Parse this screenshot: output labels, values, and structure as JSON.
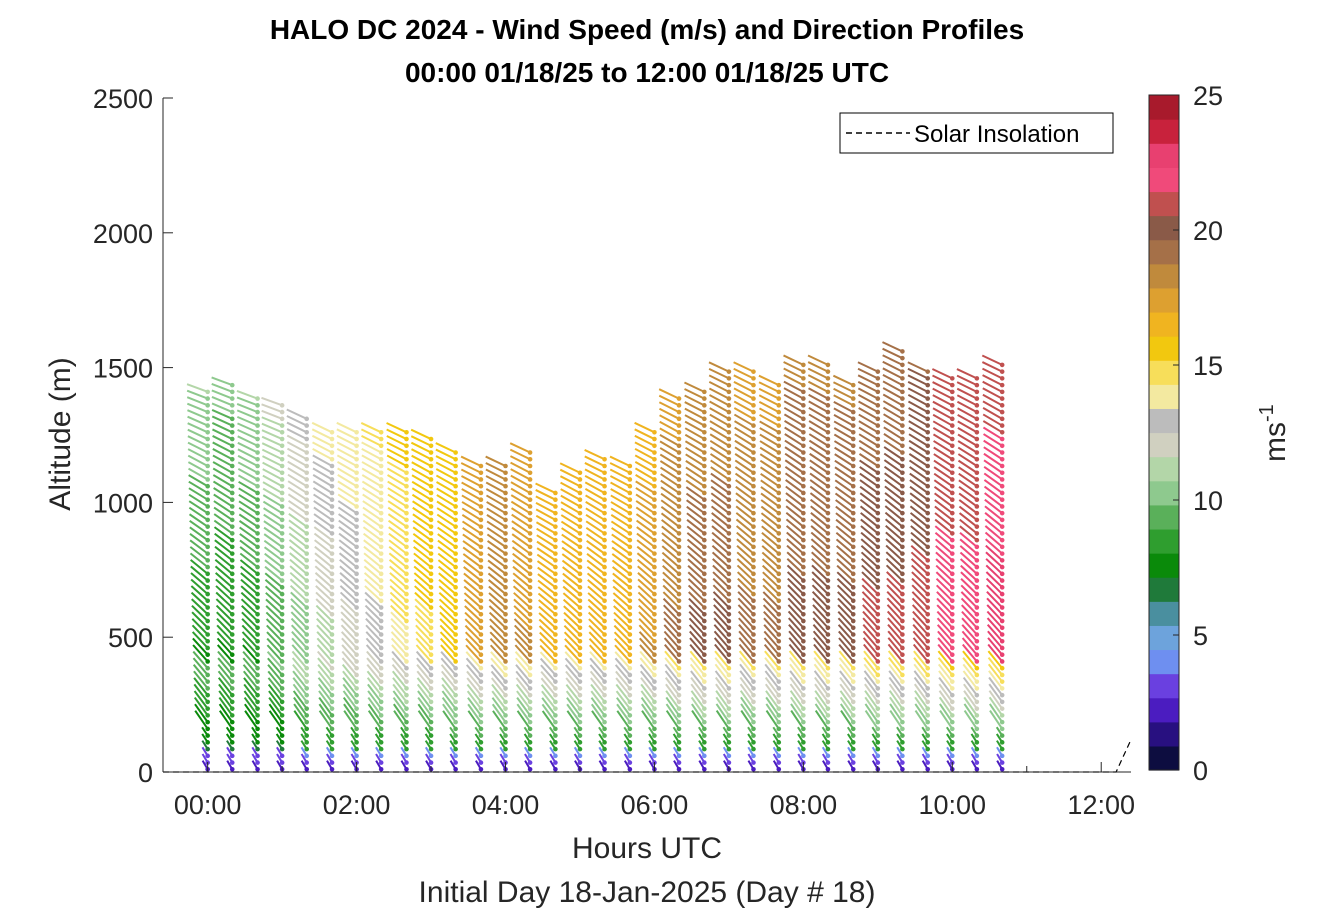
{
  "chart_data": {
    "type": "scatter",
    "title": "HALO DC 2024 - Wind Speed (m/s) and Direction Profiles",
    "subtitle": "00:00 01/18/25 to 12:00 01/18/25  UTC",
    "xlabel": "Hours UTC",
    "xlabel2": "Initial Day 18-Jan-2025 (Day # 18)",
    "ylabel": "Altitude (m)",
    "xlim": [
      -0.6,
      12.4
    ],
    "ylim": [
      0,
      2500
    ],
    "x_ticks": [
      0,
      2,
      4,
      6,
      8,
      10,
      12
    ],
    "x_tick_labels": [
      "00:00",
      "02:00",
      "04:00",
      "06:00",
      "08:00",
      "10:00",
      "12:00"
    ],
    "y_ticks": [
      0,
      500,
      1000,
      1500,
      2000,
      2500
    ],
    "y_tick_labels": [
      "0",
      "500",
      "1000",
      "1500",
      "2000",
      "2500"
    ],
    "grid": false,
    "legend": {
      "placement": "top-right",
      "entries": [
        "Solar Insolation"
      ]
    },
    "colorbar": {
      "label": "ms",
      "label_superscript": "-1",
      "range": [
        0,
        25
      ],
      "ticks": [
        0,
        5,
        10,
        15,
        20,
        25
      ],
      "tick_labels": [
        "0",
        "5",
        "10",
        "15",
        "20",
        "25"
      ]
    },
    "profiles": [
      {
        "time": 0.0,
        "top": 1420,
        "base_dir": 330,
        "top_dir": 290,
        "low_speed": 4,
        "mid_speed": 8,
        "top_speed": 12
      },
      {
        "time": 0.33,
        "top": 1450,
        "base_dir": 330,
        "top_dir": 290,
        "low_speed": 4,
        "mid_speed": 8,
        "top_speed": 11
      },
      {
        "time": 0.67,
        "top": 1400,
        "base_dir": 330,
        "top_dir": 290,
        "low_speed": 4,
        "mid_speed": 8,
        "top_speed": 12
      },
      {
        "time": 1.0,
        "top": 1360,
        "base_dir": 330,
        "top_dir": 290,
        "low_speed": 4,
        "mid_speed": 9,
        "top_speed": 13
      },
      {
        "time": 1.33,
        "top": 1310,
        "base_dir": 330,
        "top_dir": 295,
        "low_speed": 5,
        "mid_speed": 10,
        "top_speed": 14
      },
      {
        "time": 1.67,
        "top": 1280,
        "base_dir": 330,
        "top_dir": 295,
        "low_speed": 5,
        "mid_speed": 11,
        "top_speed": 15
      },
      {
        "time": 2.0,
        "top": 1280,
        "base_dir": 330,
        "top_dir": 295,
        "low_speed": 5,
        "mid_speed": 12,
        "top_speed": 15
      },
      {
        "time": 2.33,
        "top": 1270,
        "base_dir": 330,
        "top_dir": 295,
        "low_speed": 5,
        "mid_speed": 13,
        "top_speed": 15
      },
      {
        "time": 2.67,
        "top": 1260,
        "base_dir": 330,
        "top_dir": 295,
        "low_speed": 5,
        "mid_speed": 14,
        "top_speed": 16
      },
      {
        "time": 3.0,
        "top": 1240,
        "base_dir": 330,
        "top_dir": 295,
        "low_speed": 5,
        "mid_speed": 15,
        "top_speed": 16
      },
      {
        "time": 3.33,
        "top": 1200,
        "base_dir": 330,
        "top_dir": 295,
        "low_speed": 5,
        "mid_speed": 16,
        "top_speed": 16
      },
      {
        "time": 3.67,
        "top": 1150,
        "base_dir": 330,
        "top_dir": 295,
        "low_speed": 5,
        "mid_speed": 17,
        "top_speed": 17
      },
      {
        "time": 4.0,
        "top": 1150,
        "base_dir": 330,
        "top_dir": 295,
        "low_speed": 5,
        "mid_speed": 18,
        "top_speed": 18
      },
      {
        "time": 4.33,
        "top": 1190,
        "base_dir": 330,
        "top_dir": 295,
        "low_speed": 5,
        "mid_speed": 18,
        "top_speed": 17
      },
      {
        "time": 4.67,
        "top": 1050,
        "base_dir": 330,
        "top_dir": 295,
        "low_speed": 5,
        "mid_speed": 17,
        "top_speed": 16
      },
      {
        "time": 5.0,
        "top": 1130,
        "base_dir": 330,
        "top_dir": 295,
        "low_speed": 5,
        "mid_speed": 17,
        "top_speed": 16
      },
      {
        "time": 5.33,
        "top": 1160,
        "base_dir": 330,
        "top_dir": 295,
        "low_speed": 5,
        "mid_speed": 17,
        "top_speed": 16
      },
      {
        "time": 5.67,
        "top": 1150,
        "base_dir": 330,
        "top_dir": 295,
        "low_speed": 5,
        "mid_speed": 17,
        "top_speed": 16
      },
      {
        "time": 6.0,
        "top": 1280,
        "base_dir": 330,
        "top_dir": 295,
        "low_speed": 5,
        "mid_speed": 18,
        "top_speed": 16
      },
      {
        "time": 6.33,
        "top": 1400,
        "base_dir": 330,
        "top_dir": 295,
        "low_speed": 5,
        "mid_speed": 19,
        "top_speed": 17
      },
      {
        "time": 6.67,
        "top": 1420,
        "base_dir": 330,
        "top_dir": 295,
        "low_speed": 5,
        "mid_speed": 20,
        "top_speed": 17
      },
      {
        "time": 7.0,
        "top": 1490,
        "base_dir": 330,
        "top_dir": 295,
        "low_speed": 5,
        "mid_speed": 20,
        "top_speed": 17
      },
      {
        "time": 7.33,
        "top": 1500,
        "base_dir": 330,
        "top_dir": 295,
        "low_speed": 5,
        "mid_speed": 19,
        "top_speed": 17
      },
      {
        "time": 7.67,
        "top": 1450,
        "base_dir": 330,
        "top_dir": 295,
        "low_speed": 5,
        "mid_speed": 19,
        "top_speed": 17
      },
      {
        "time": 8.0,
        "top": 1530,
        "base_dir": 330,
        "top_dir": 295,
        "low_speed": 5,
        "mid_speed": 20,
        "top_speed": 18
      },
      {
        "time": 8.33,
        "top": 1520,
        "base_dir": 330,
        "top_dir": 295,
        "low_speed": 5,
        "mid_speed": 20,
        "top_speed": 18
      },
      {
        "time": 8.67,
        "top": 1450,
        "base_dir": 330,
        "top_dir": 295,
        "low_speed": 5,
        "mid_speed": 20,
        "top_speed": 18
      },
      {
        "time": 9.0,
        "top": 1500,
        "base_dir": 330,
        "top_dir": 295,
        "low_speed": 5,
        "mid_speed": 21,
        "top_speed": 18
      },
      {
        "time": 9.33,
        "top": 1560,
        "base_dir": 330,
        "top_dir": 295,
        "low_speed": 5,
        "mid_speed": 21,
        "top_speed": 18
      },
      {
        "time": 9.67,
        "top": 1500,
        "base_dir": 330,
        "top_dir": 295,
        "low_speed": 5,
        "mid_speed": 21,
        "top_speed": 19
      },
      {
        "time": 10.0,
        "top": 1470,
        "base_dir": 330,
        "top_dir": 295,
        "low_speed": 5,
        "mid_speed": 22,
        "top_speed": 20
      },
      {
        "time": 10.33,
        "top": 1460,
        "base_dir": 330,
        "top_dir": 295,
        "low_speed": 5,
        "mid_speed": 22,
        "top_speed": 20
      },
      {
        "time": 10.67,
        "top": 1520,
        "base_dir": 330,
        "top_dir": 295,
        "low_speed": 5,
        "mid_speed": 23,
        "top_speed": 20
      }
    ],
    "solar_insolation": {
      "x": [
        -0.6,
        12.2,
        12.4
      ],
      "y": [
        0,
        0,
        120
      ]
    }
  },
  "colors": {
    "axis": "#262626",
    "legend_border": "#000000",
    "colormap": [
      "#0d0d40",
      "#281080",
      "#4b1cc0",
      "#6a40e0",
      "#6e8ff0",
      "#6da3dc",
      "#4a8f9f",
      "#1f7a3a",
      "#0a8a0a",
      "#2f9e2f",
      "#5ab05a",
      "#8ec98e",
      "#b3d6a8",
      "#d0d0c0",
      "#bcbcbc",
      "#f3e9a0",
      "#f7de5a",
      "#f2c80f",
      "#f0b420",
      "#dda030",
      "#c08a3c",
      "#a57048",
      "#8a5a48",
      "#c0504f",
      "#f04a7a",
      "#e84070",
      "#c8223c",
      "#a81a2c"
    ]
  }
}
